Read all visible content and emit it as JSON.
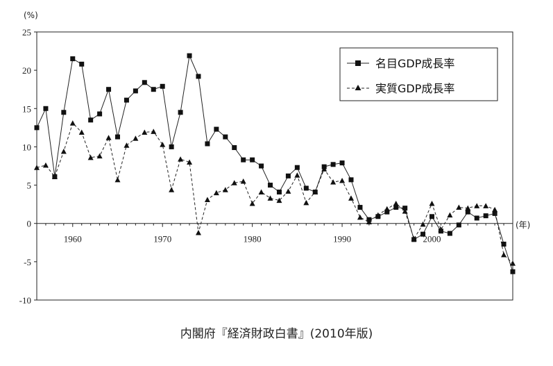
{
  "chart_data": {
    "type": "line",
    "y_unit": "(%)",
    "x_unit": "(年)",
    "ylim": [
      -10,
      25
    ],
    "yticks": [
      25,
      20,
      15,
      10,
      5,
      0,
      -5,
      -10
    ],
    "xlim": [
      1956,
      2009
    ],
    "xticks": [
      1960,
      1970,
      1980,
      1990,
      2000
    ],
    "grid": false,
    "legend_position": "top-right",
    "x": [
      1956,
      1957,
      1958,
      1959,
      1960,
      1961,
      1962,
      1963,
      1964,
      1965,
      1966,
      1967,
      1968,
      1969,
      1970,
      1971,
      1972,
      1973,
      1974,
      1975,
      1976,
      1977,
      1978,
      1979,
      1980,
      1981,
      1982,
      1983,
      1984,
      1985,
      1986,
      1987,
      1988,
      1989,
      1990,
      1991,
      1992,
      1993,
      1994,
      1995,
      1996,
      1997,
      1998,
      1999,
      2000,
      2001,
      2002,
      2003,
      2004,
      2005,
      2006,
      2007,
      2008,
      2009
    ],
    "series": [
      {
        "name": "名目GDP成長率",
        "marker": "square",
        "line": "solid",
        "values": [
          12.5,
          15.0,
          6.1,
          14.5,
          21.5,
          20.8,
          13.5,
          14.3,
          17.5,
          11.3,
          16.1,
          17.3,
          18.4,
          17.5,
          17.9,
          10.0,
          14.5,
          21.9,
          19.2,
          10.4,
          12.3,
          11.3,
          9.9,
          8.3,
          8.3,
          7.5,
          5.0,
          4.1,
          6.2,
          7.3,
          4.6,
          4.1,
          7.4,
          7.7,
          7.9,
          5.7,
          2.1,
          0.5,
          0.9,
          1.5,
          2.1,
          2.0,
          -2.1,
          -1.4,
          0.9,
          -1.0,
          -1.3,
          -0.2,
          1.5,
          0.7,
          1.0,
          1.3,
          -2.7,
          -6.3
        ]
      },
      {
        "name": "実質GDP成長率",
        "marker": "triangle",
        "line": "dashed",
        "values": [
          7.3,
          7.6,
          6.1,
          9.4,
          13.1,
          11.9,
          8.6,
          8.8,
          11.2,
          5.7,
          10.2,
          11.1,
          11.9,
          12.0,
          10.3,
          4.4,
          8.4,
          8.0,
          -1.2,
          3.1,
          4.0,
          4.4,
          5.3,
          5.5,
          2.6,
          4.1,
          3.3,
          3.0,
          4.2,
          6.3,
          2.7,
          4.1,
          7.1,
          5.4,
          5.6,
          3.3,
          0.8,
          0.2,
          1.1,
          1.9,
          2.6,
          1.6,
          -2.0,
          -0.1,
          2.6,
          -0.8,
          1.1,
          2.1,
          2.0,
          2.3,
          2.3,
          1.8,
          -4.1,
          -5.2
        ]
      }
    ],
    "yticklabels": [
      "25",
      "20",
      "15",
      "10",
      "5",
      "0",
      "-5",
      "-10"
    ],
    "xticklabels": [
      "1960",
      "1970",
      "1980",
      "1990",
      "2000"
    ]
  },
  "source": "内閣府『経済財政白書』(2010年版)"
}
